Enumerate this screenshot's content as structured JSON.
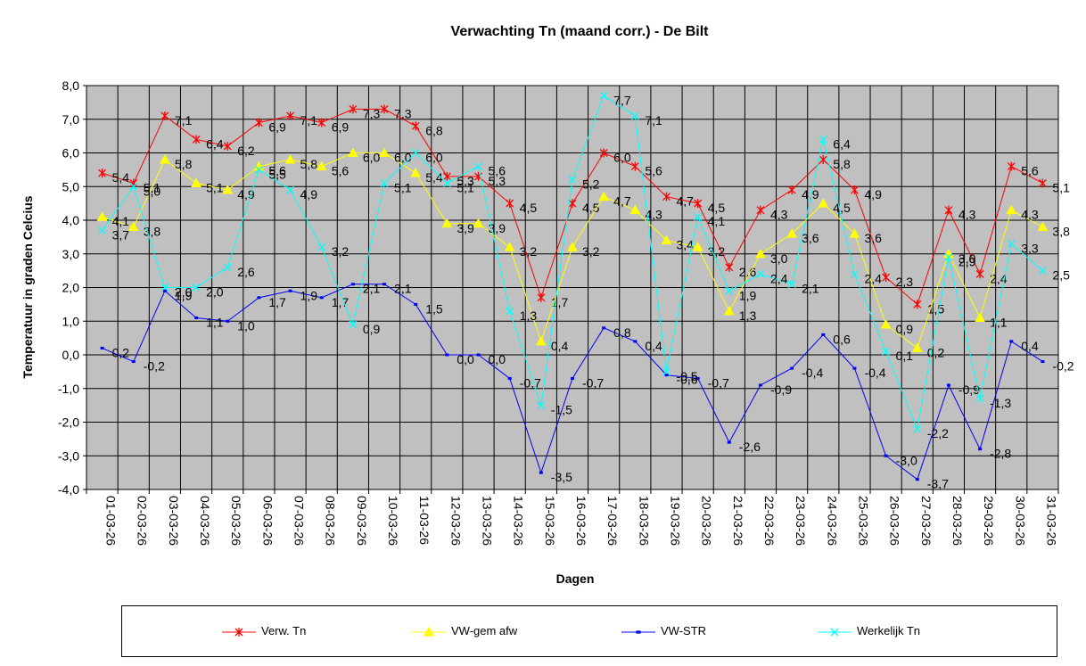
{
  "chart_data": {
    "type": "line",
    "title": "Verwachting Tn (maand corr.) - De Bilt",
    "xlabel": "Dagen",
    "ylabel": "Temperatuur in graden Celcius",
    "ylim": [
      -4,
      8
    ],
    "ytick_step": 1,
    "grid": true,
    "plot_background": "#c0c0c0",
    "legend_position": "bottom",
    "categories": [
      "01-03-26",
      "02-03-26",
      "03-03-26",
      "04-03-26",
      "05-03-26",
      "06-03-26",
      "07-03-26",
      "08-03-26",
      "09-03-26",
      "10-03-26",
      "11-03-26",
      "12-03-26",
      "13-03-26",
      "14-03-26",
      "15-03-26",
      "16-03-26",
      "17-03-26",
      "18-03-26",
      "19-03-26",
      "20-03-26",
      "21-03-26",
      "22-03-26",
      "23-03-26",
      "24-03-26",
      "25-03-26",
      "26-03-26",
      "27-03-26",
      "28-03-26",
      "29-03-26",
      "30-03-26",
      "31-03-26"
    ],
    "series": [
      {
        "name": "Verw. Tn",
        "color": "#ff0000",
        "marker": "star",
        "values": [
          5.4,
          5.1,
          7.1,
          6.4,
          6.2,
          6.9,
          7.1,
          6.9,
          7.3,
          7.3,
          6.8,
          5.3,
          5.3,
          4.5,
          1.7,
          4.5,
          6.0,
          5.6,
          4.7,
          4.5,
          2.6,
          4.3,
          4.9,
          5.8,
          4.9,
          2.3,
          1.5,
          4.3,
          2.4,
          5.6,
          5.1
        ]
      },
      {
        "name": "VW-gem afw",
        "color": "#ffff00",
        "marker": "triangle",
        "values": [
          4.1,
          3.8,
          5.8,
          5.1,
          4.9,
          5.6,
          5.8,
          5.6,
          6.0,
          6.0,
          5.4,
          3.9,
          3.9,
          3.2,
          0.4,
          3.2,
          4.7,
          4.3,
          3.4,
          3.2,
          1.3,
          3.0,
          3.6,
          4.5,
          3.6,
          0.9,
          0.2,
          3.0,
          1.1,
          4.3,
          3.8
        ]
      },
      {
        "name": "VW-STR",
        "color": "#0000ff",
        "marker": "dash",
        "values": [
          0.2,
          -0.2,
          1.9,
          1.1,
          1.0,
          1.7,
          1.9,
          1.7,
          2.1,
          2.1,
          1.5,
          0.0,
          0.0,
          -0.7,
          -3.5,
          -0.7,
          0.8,
          0.4,
          -0.6,
          -0.7,
          -2.6,
          -0.9,
          -0.4,
          0.6,
          -0.4,
          -3.0,
          -3.7,
          -0.9,
          -2.8,
          0.4,
          -0.2
        ]
      },
      {
        "name": "Werkelijk Tn",
        "color": "#00ffff",
        "marker": "x",
        "values": [
          3.7,
          5.0,
          2.0,
          2.0,
          2.6,
          5.5,
          4.9,
          3.2,
          0.9,
          5.1,
          6.0,
          5.1,
          5.6,
          1.3,
          -1.5,
          5.2,
          7.7,
          7.1,
          -0.5,
          4.1,
          1.9,
          2.4,
          2.1,
          6.4,
          2.4,
          0.1,
          -2.2,
          2.9,
          -1.3,
          3.3,
          2.5
        ]
      }
    ]
  }
}
